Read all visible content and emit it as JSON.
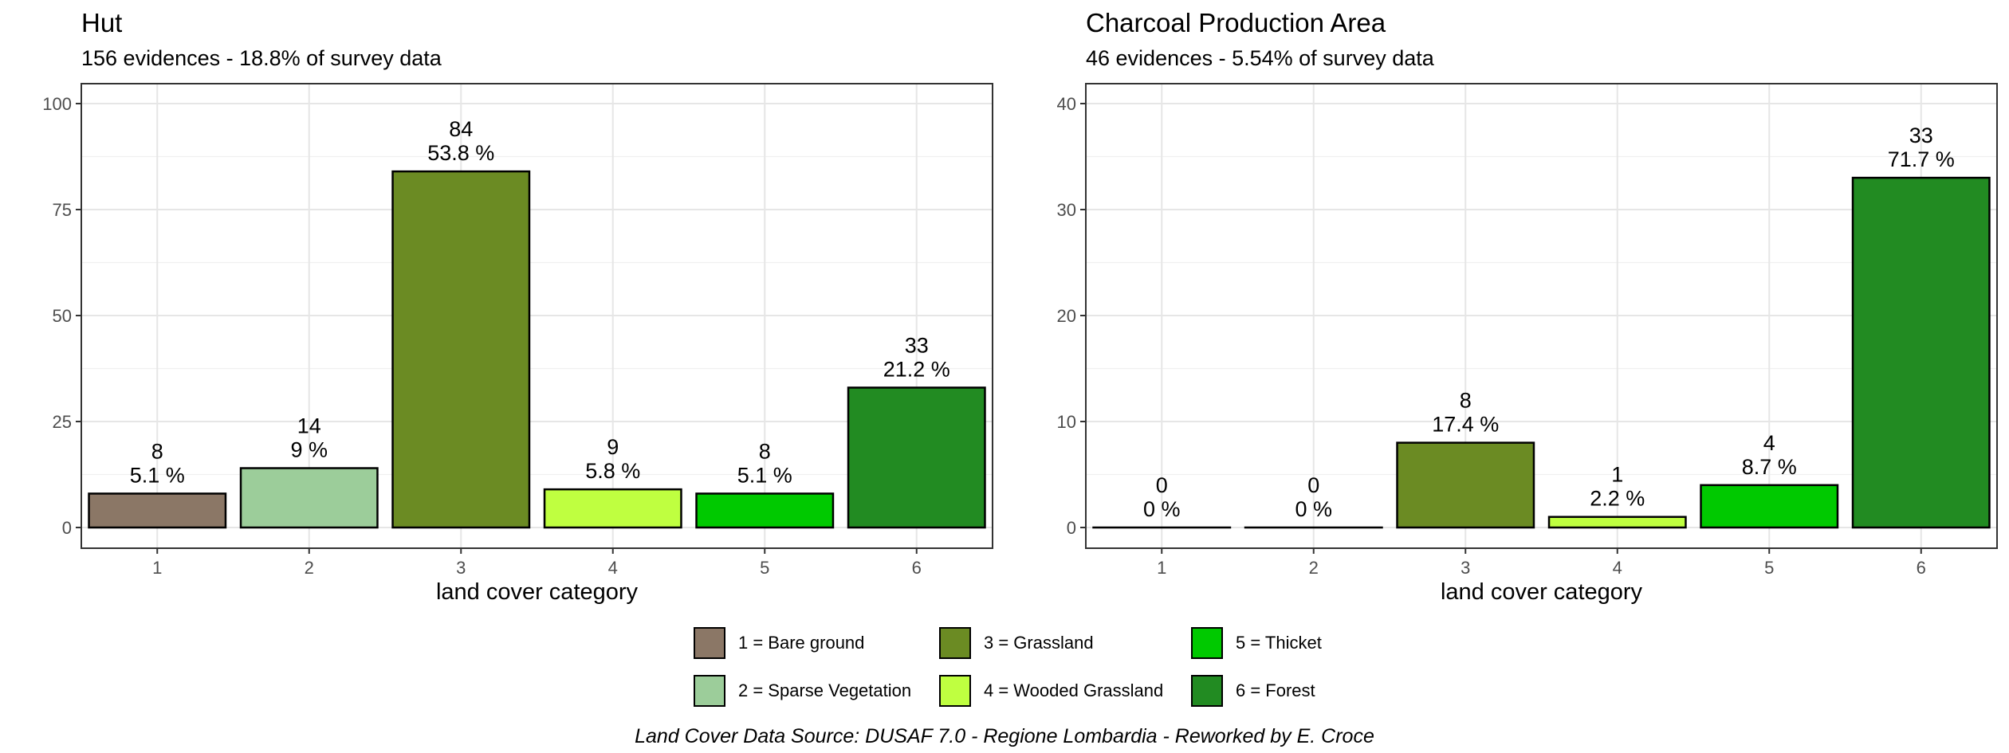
{
  "chart_data": [
    {
      "type": "bar",
      "title": "Hut",
      "subtitle": "156 evidences - 18.8% of survey data",
      "xlabel": "land cover category",
      "ylabel": "",
      "categories": [
        "1",
        "2",
        "3",
        "4",
        "5",
        "6"
      ],
      "values": [
        8,
        14,
        84,
        9,
        8,
        33
      ],
      "percent_labels": [
        "5.1 %",
        "9 %",
        "53.8 %",
        "5.8 %",
        "5.1 %",
        "21.2 %"
      ],
      "ylim": [
        0,
        100
      ],
      "yticks": [
        0,
        25,
        50,
        75,
        100
      ],
      "grid": true
    },
    {
      "type": "bar",
      "title": "Charcoal Production Area",
      "subtitle": "46 evidences - 5.54% of survey data",
      "xlabel": "land cover category",
      "ylabel": "",
      "categories": [
        "1",
        "2",
        "3",
        "4",
        "5",
        "6"
      ],
      "values": [
        0,
        0,
        8,
        1,
        4,
        33
      ],
      "percent_labels": [
        "0 %",
        "0 %",
        "17.4 %",
        "2.2 %",
        "8.7 %",
        "71.7 %"
      ],
      "ylim": [
        0,
        40
      ],
      "yticks": [
        0,
        10,
        20,
        30,
        40
      ],
      "grid": true
    }
  ],
  "category_colors": [
    "#8b7766",
    "#9ccd9a",
    "#6b8b23",
    "#bfff40",
    "#00c900",
    "#228b22"
  ],
  "legend": {
    "items": [
      {
        "label": "1 = Bare ground",
        "color": "#8b7766"
      },
      {
        "label": "2 = Sparse Vegetation",
        "color": "#9ccd9a"
      },
      {
        "label": "3 = Grassland",
        "color": "#6b8b23"
      },
      {
        "label": "4 = Wooded Grassland",
        "color": "#bfff40"
      },
      {
        "label": "5 = Thicket",
        "color": "#00c900"
      },
      {
        "label": "6 = Forest",
        "color": "#228b22"
      }
    ]
  },
  "caption": "Land Cover Data Source: DUSAF 7.0 - Regione Lombardia - Reworked by E. Croce"
}
